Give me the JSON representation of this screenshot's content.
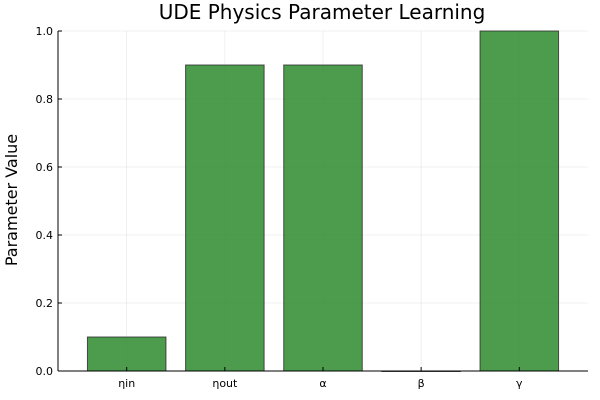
{
  "chart_data": {
    "type": "bar",
    "title": "UDE Physics Parameter Learning",
    "xlabel": "",
    "ylabel": "Parameter Value",
    "categories": [
      "ηin",
      "ηout",
      "α",
      "β",
      "γ"
    ],
    "values": [
      0.1,
      0.9,
      0.9,
      0.0,
      1.0
    ],
    "ylim": [
      0,
      1
    ],
    "yticks": [
      "0.0",
      "0.2",
      "0.4",
      "0.6",
      "0.8",
      "1.0"
    ],
    "grid": true,
    "legend": "none",
    "bar_color": "#2e8b2e"
  }
}
